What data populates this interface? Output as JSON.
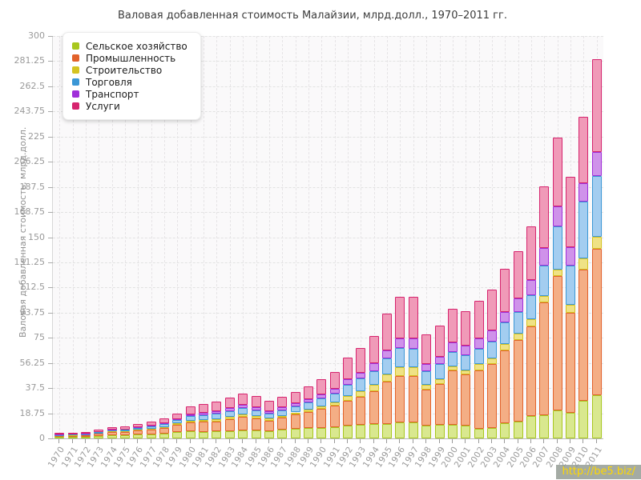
{
  "title": "Валовая добавленная стоимость Малайзии, млрд.долл., 1970–2011 гг.",
  "watermark": {
    "text": "http://be5.biz/"
  },
  "axes": {
    "y_label": "Валовая добавленная стоимость, млрд.долл.",
    "y_ticks": [
      "0",
      "18.75",
      "37.5",
      "56.25",
      "75",
      "93.75",
      "112.5",
      "131.25",
      "150",
      "168.75",
      "187.5",
      "206.25",
      "225",
      "243.75",
      "262.5",
      "281.25",
      "300"
    ]
  },
  "colors": {
    "plot_background": "#faf9fa",
    "grid": "#e2e2e2",
    "tick_text": "#9a9a9a",
    "watermark_bg": "#949c94",
    "watermark_text": "#ffd800"
  },
  "chart_data": {
    "type": "bar",
    "stacked": true,
    "title": "Валовая добавленная стоимость Малайзии, млрд.долл., 1970–2011 гг.",
    "xlabel": "",
    "ylabel": "Валовая добавленная стоимость, млрд.долл.",
    "ylim": [
      0,
      300
    ],
    "grid": true,
    "legend_position": "top-left",
    "categories": [
      1970,
      1971,
      1972,
      1973,
      1974,
      1975,
      1976,
      1977,
      1978,
      1979,
      1980,
      1981,
      1982,
      1983,
      1984,
      1985,
      1986,
      1987,
      1988,
      1989,
      1990,
      1991,
      1992,
      1993,
      1994,
      1995,
      1996,
      1997,
      1998,
      1999,
      2000,
      2001,
      2002,
      2003,
      2004,
      2005,
      2006,
      2007,
      2008,
      2009,
      2010,
      2011
    ],
    "series": [
      {
        "name": "Сельское хозяйство",
        "color": "#a8c71e",
        "fill": "#d9e88f",
        "values": [
          1.0,
          1.0,
          1.1,
          1.7,
          2.3,
          2.2,
          2.8,
          3.1,
          3.6,
          4.6,
          5.2,
          5.0,
          5.2,
          5.6,
          6.2,
          5.7,
          5.3,
          6.4,
          7.2,
          7.5,
          7.9,
          8.3,
          9.5,
          9.9,
          10.8,
          11.0,
          12.0,
          11.8,
          9.6,
          10.3,
          10.2,
          9.8,
          7.4,
          7.5,
          11.3,
          12.3,
          16.7,
          17.5,
          21.0,
          19.0,
          28.0,
          32.0
        ]
      },
      {
        "name": "Промышленность",
        "color": "#e2622b",
        "fill": "#f4ae85",
        "values": [
          0.9,
          1.05,
          1.2,
          1.75,
          2.45,
          2.55,
          3.15,
          3.65,
          4.35,
          5.6,
          6.9,
          7.3,
          7.6,
          8.7,
          9.7,
          9.0,
          7.8,
          9.1,
          10.7,
          12.2,
          14.0,
          15.9,
          18.8,
          21.3,
          24.3,
          31.3,
          34.8,
          34.5,
          26.6,
          30.5,
          40.4,
          38.0,
          43.5,
          47.9,
          54.6,
          61.3,
          67.0,
          83.8,
          100.0,
          74.9,
          98.0,
          109.6
        ]
      },
      {
        "name": "Строительство",
        "color": "#d5c321",
        "fill": "#efe285",
        "values": [
          0.15,
          0.17,
          0.2,
          0.27,
          0.35,
          0.38,
          0.45,
          0.55,
          0.7,
          0.85,
          1.2,
          1.5,
          1.8,
          2.1,
          2.3,
          2.1,
          1.6,
          1.4,
          1.5,
          1.7,
          2.1,
          2.6,
          3.3,
          3.9,
          4.6,
          5.3,
          6.4,
          6.5,
          3.7,
          3.4,
          3.0,
          3.1,
          4.6,
          4.4,
          4.5,
          4.6,
          5.3,
          4.7,
          5.0,
          6.0,
          8.0,
          9.0
        ]
      },
      {
        "name": "Торговля",
        "color": "#3b97d6",
        "fill": "#a3cdf0",
        "values": [
          0.5,
          0.55,
          0.6,
          0.85,
          1.1,
          1.2,
          1.4,
          1.65,
          2.0,
          2.5,
          3.3,
          3.5,
          3.7,
          4.0,
          4.4,
          4.1,
          3.7,
          4.0,
          4.5,
          5.2,
          6.0,
          6.9,
          8.3,
          9.4,
          10.7,
          12.1,
          14.0,
          14.3,
          10.2,
          11.0,
          10.8,
          11.0,
          11.5,
          12.3,
          15.9,
          16.0,
          18.0,
          23.0,
          32.0,
          29.2,
          42.5,
          45.0
        ]
      },
      {
        "name": "Транспорт",
        "color": "#a02fd9",
        "fill": "#cf92ea",
        "values": [
          0.2,
          0.22,
          0.25,
          0.33,
          0.42,
          0.47,
          0.55,
          0.7,
          0.85,
          1.05,
          1.4,
          1.6,
          1.8,
          2.0,
          2.2,
          2.1,
          1.9,
          2.1,
          2.3,
          2.6,
          3.0,
          3.5,
          4.2,
          4.7,
          5.4,
          6.2,
          7.3,
          7.5,
          5.4,
          5.8,
          7.1,
          7.2,
          7.8,
          8.2,
          7.9,
          10.0,
          11.0,
          13.0,
          15.0,
          13.4,
          13.5,
          17.9
        ]
      },
      {
        "name": "Услуги",
        "color": "#d6246e",
        "fill": "#f09ab8",
        "values": [
          0.85,
          0.95,
          1.15,
          1.4,
          1.68,
          2.0,
          2.25,
          2.75,
          3.3,
          4.0,
          5.8,
          6.6,
          7.4,
          8.1,
          8.9,
          8.5,
          7.9,
          7.9,
          8.3,
          9.3,
          11.0,
          12.4,
          16.0,
          18.3,
          20.3,
          26.9,
          31.1,
          31.0,
          21.8,
          22.9,
          25.1,
          25.7,
          27.8,
          30.8,
          32.4,
          35.3,
          40.0,
          46.0,
          51.4,
          52.5,
          50.0,
          69.5
        ]
      }
    ]
  }
}
